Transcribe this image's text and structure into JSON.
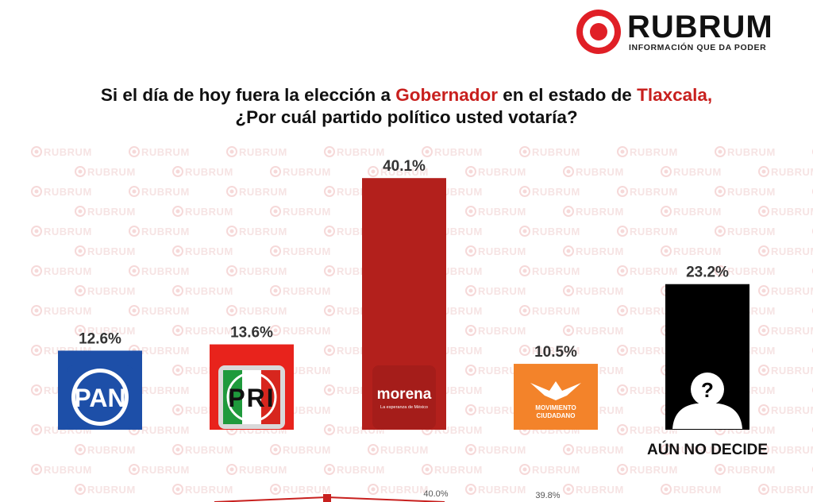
{
  "brand": {
    "name": "RUBRUM",
    "tagline": "INFORMACIÓN QUE DA PODER",
    "watermark": "RUBRUM",
    "accent_color": "#e01f26"
  },
  "question": {
    "part1": "Si el día de hoy fuera la elección a ",
    "highlight1": "Gobernador",
    "part2": " en el estado de ",
    "highlight2": "Tlaxcala,",
    "line2": "¿Por cuál partido político usted votaría?"
  },
  "chart_data": {
    "type": "bar",
    "title": "Si el día de hoy fuera la elección a Gobernador en el estado de Tlaxcala, ¿Por cuál partido político usted votaría?",
    "categories": [
      "PAN",
      "PRI",
      "morena",
      "Movimiento Ciudadano",
      "AÚN NO DECIDE"
    ],
    "values": [
      12.6,
      13.6,
      40.1,
      10.5,
      23.2
    ],
    "value_labels": [
      "12.6%",
      "13.6%",
      "40.1%",
      "10.5%",
      "23.2%"
    ],
    "colors": [
      "#1d4fa8",
      "#e8231c",
      "#b3201c",
      "#f3832a",
      "#000000"
    ],
    "category_label": "AÚN NO DECIDE",
    "ylim": [
      0,
      45
    ],
    "logos": {
      "pan": "PAN",
      "pri": "PRI",
      "morena": "morena",
      "morena_sub": "La esperanza de México",
      "mc_line1": "MOVIMIENTO",
      "mc_line2": "CIUDADANO",
      "undecided": "?"
    },
    "footer_values": [
      "40.0%",
      "39.8%"
    ]
  }
}
